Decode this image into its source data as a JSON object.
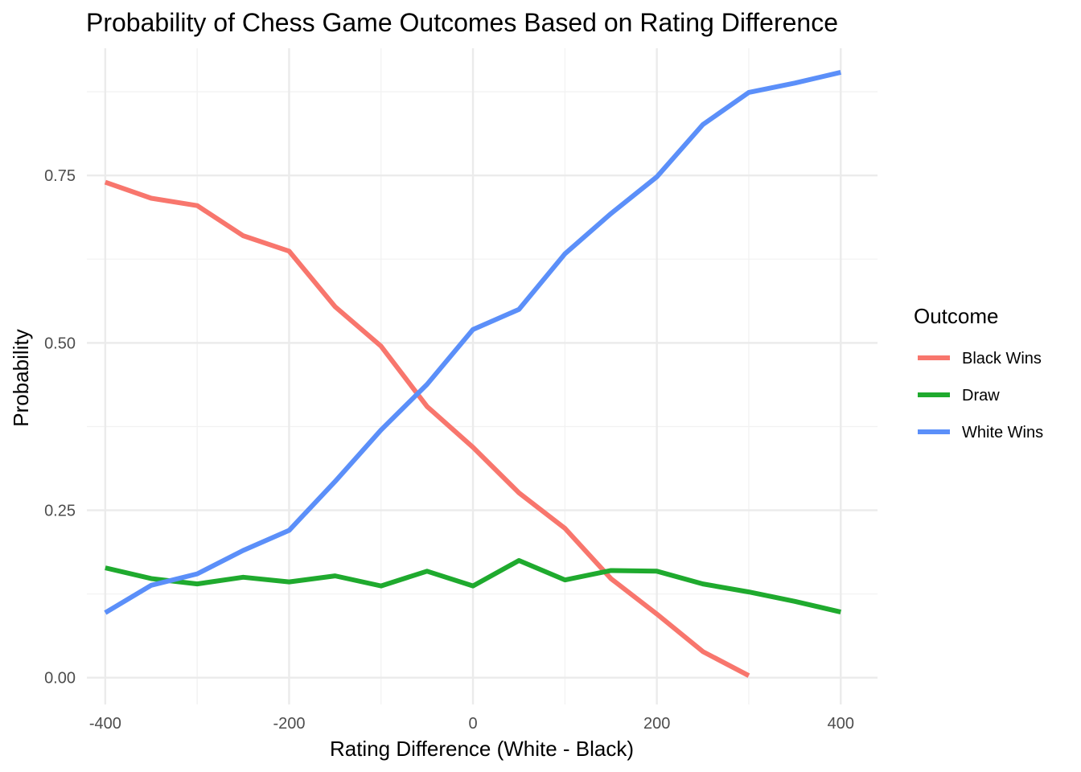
{
  "chart_data": {
    "type": "line",
    "title": "Probability of Chess Game Outcomes Based on Rating Difference",
    "xlabel": "Rating Difference (White - Black)",
    "ylabel": "Probability",
    "xlim": [
      -420,
      440
    ],
    "ylim": [
      -0.04,
      0.94
    ],
    "x_ticks": [
      -400,
      -200,
      0,
      200,
      400
    ],
    "x_tick_labels": [
      "-400",
      "-200",
      "0",
      "200",
      "400"
    ],
    "x_minor": [
      -300,
      -100,
      100,
      300
    ],
    "y_ticks": [
      0,
      0.25,
      0.5,
      0.75
    ],
    "y_tick_labels": [
      "0.00",
      "0.25",
      "0.50",
      "0.75"
    ],
    "y_minor": [
      0.125,
      0.375,
      0.625,
      0.875
    ],
    "grid": true,
    "legend": {
      "title": "Outcome",
      "position": "right"
    },
    "x": [
      -400,
      -350,
      -300,
      -250,
      -200,
      -150,
      -100,
      -50,
      0,
      50,
      100,
      150,
      200,
      250,
      300,
      350,
      400
    ],
    "series": [
      {
        "name": "Black Wins",
        "color": "#F8766D",
        "values": [
          0.74,
          0.716,
          0.705,
          0.66,
          0.637,
          0.554,
          0.495,
          0.405,
          0.344,
          0.276,
          0.223,
          0.148,
          0.095,
          0.039,
          0.003,
          null,
          null
        ]
      },
      {
        "name": "Draw",
        "color": "#1FAA2E",
        "values": [
          0.164,
          0.148,
          0.14,
          0.15,
          0.143,
          0.152,
          0.137,
          0.159,
          0.137,
          0.175,
          0.146,
          0.16,
          0.159,
          0.14,
          0.128,
          0.114,
          0.098
        ]
      },
      {
        "name": "White Wins",
        "color": "#5B8FF9",
        "values": [
          0.097,
          0.138,
          0.155,
          0.19,
          0.22,
          0.293,
          0.37,
          0.438,
          0.52,
          0.55,
          0.633,
          0.693,
          0.748,
          0.826,
          0.874,
          0.888,
          0.904
        ]
      }
    ]
  }
}
